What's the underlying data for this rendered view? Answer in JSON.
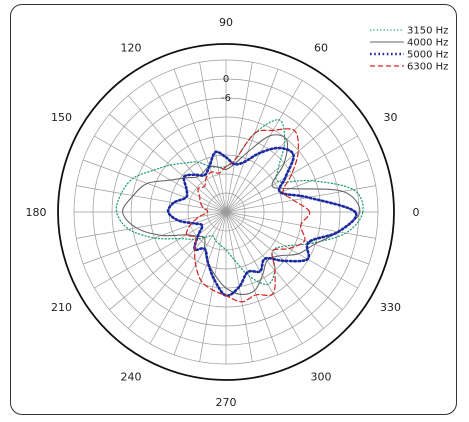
{
  "chart_data": {
    "type": "line",
    "subtype": "polar",
    "title": "",
    "angle_labels": [
      "0",
      "30",
      "60",
      "90",
      "120",
      "150",
      "180",
      "210",
      "240",
      "270",
      "300",
      "330"
    ],
    "angle_step_deg": 30,
    "radial_labels": [
      "0",
      "-6"
    ],
    "radial_ring_count": 8,
    "grid": true,
    "legend_position": "top-right",
    "series": [
      {
        "name": "3150 Hz",
        "color": "#1a9a7a",
        "dash": "dotted",
        "angles": [
          0,
          10,
          20,
          30,
          40,
          50,
          60,
          70,
          80,
          90,
          100,
          110,
          120,
          130,
          140,
          150,
          160,
          170,
          180,
          190,
          200,
          210,
          220,
          230,
          240,
          250,
          260,
          270,
          280,
          290,
          300,
          310,
          320,
          330,
          340,
          350
        ],
        "values": [
          0.9,
          0.85,
          0.6,
          0.4,
          0.45,
          0.6,
          0.7,
          0.55,
          0.35,
          0.3,
          0.3,
          0.32,
          0.38,
          0.42,
          0.48,
          0.55,
          0.65,
          0.7,
          0.72,
          0.65,
          0.5,
          0.35,
          0.28,
          0.22,
          0.18,
          0.2,
          0.22,
          0.25,
          0.32,
          0.45,
          0.55,
          0.5,
          0.4,
          0.45,
          0.6,
          0.8
        ]
      },
      {
        "name": "4000 Hz",
        "color": "#666666",
        "dash": "solid",
        "angles": [
          0,
          10,
          20,
          30,
          40,
          50,
          60,
          70,
          80,
          90,
          100,
          110,
          120,
          130,
          140,
          150,
          160,
          170,
          180,
          190,
          200,
          210,
          220,
          230,
          240,
          250,
          260,
          270,
          280,
          290,
          300,
          310,
          320,
          330,
          340,
          350
        ],
        "values": [
          0.88,
          0.78,
          0.45,
          0.35,
          0.5,
          0.62,
          0.58,
          0.42,
          0.32,
          0.28,
          0.3,
          0.32,
          0.3,
          0.3,
          0.35,
          0.42,
          0.55,
          0.62,
          0.68,
          0.6,
          0.45,
          0.3,
          0.25,
          0.22,
          0.28,
          0.35,
          0.42,
          0.5,
          0.55,
          0.55,
          0.48,
          0.42,
          0.45,
          0.55,
          0.62,
          0.75
        ]
      },
      {
        "name": "5000 Hz",
        "color": "#1a2aa0",
        "dash": "dotted-bold",
        "angles": [
          0,
          10,
          20,
          30,
          40,
          50,
          60,
          70,
          80,
          90,
          100,
          110,
          120,
          130,
          140,
          150,
          160,
          170,
          180,
          190,
          200,
          210,
          220,
          230,
          240,
          250,
          260,
          270,
          280,
          290,
          300,
          310,
          320,
          330,
          340,
          350
        ],
        "values": [
          0.85,
          0.55,
          0.38,
          0.45,
          0.58,
          0.55,
          0.45,
          0.35,
          0.32,
          0.36,
          0.4,
          0.32,
          0.28,
          0.32,
          0.36,
          0.3,
          0.28,
          0.35,
          0.38,
          0.32,
          0.22,
          0.18,
          0.24,
          0.32,
          0.28,
          0.35,
          0.45,
          0.55,
          0.5,
          0.42,
          0.45,
          0.4,
          0.5,
          0.62,
          0.58,
          0.75
        ]
      },
      {
        "name": "6300 Hz",
        "color": "#d42020",
        "dash": "dashed",
        "angles": [
          0,
          10,
          20,
          30,
          40,
          50,
          60,
          70,
          80,
          90,
          100,
          110,
          120,
          130,
          140,
          150,
          160,
          170,
          180,
          190,
          200,
          210,
          220,
          230,
          240,
          250,
          260,
          270,
          280,
          290,
          300,
          310,
          320,
          330,
          340,
          350
        ],
        "values": [
          0.55,
          0.45,
          0.4,
          0.5,
          0.62,
          0.7,
          0.62,
          0.55,
          0.35,
          0.3,
          0.26,
          0.28,
          0.26,
          0.22,
          0.24,
          0.2,
          0.18,
          0.15,
          0.12,
          0.18,
          0.25,
          0.3,
          0.26,
          0.32,
          0.4,
          0.48,
          0.52,
          0.55,
          0.6,
          0.58,
          0.62,
          0.5,
          0.4,
          0.48,
          0.55,
          0.5
        ]
      }
    ]
  }
}
